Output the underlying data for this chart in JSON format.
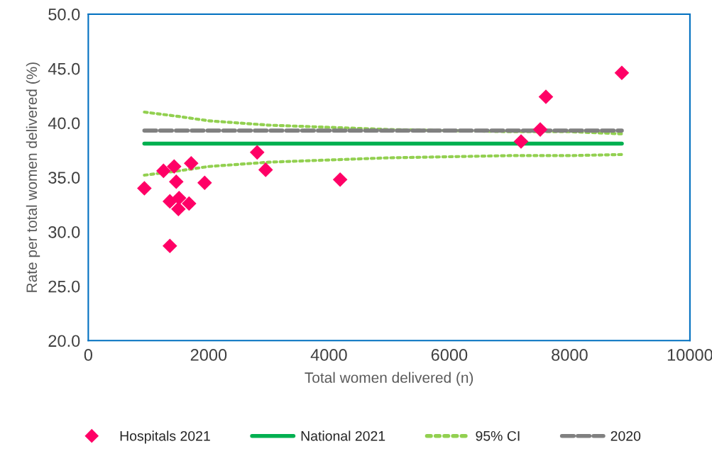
{
  "chart_data": {
    "type": "scatter",
    "xlabel": "Total women delivered (n)",
    "ylabel": "Rate per total women delivered (%)",
    "xlim": [
      0,
      10000
    ],
    "ylim": [
      20,
      50
    ],
    "xticks": [
      0,
      2000,
      4000,
      6000,
      8000,
      10000
    ],
    "yticks": [
      {
        "value": 20,
        "label": "20.0"
      },
      {
        "value": 25,
        "label": "25.0"
      },
      {
        "value": 30,
        "label": "30.0"
      },
      {
        "value": 35,
        "label": "35.0"
      },
      {
        "value": 40,
        "label": "40.0"
      },
      {
        "value": 45,
        "label": "45.0"
      },
      {
        "value": 50,
        "label": "50.0"
      }
    ],
    "grid": false,
    "legend": "bottom",
    "series": [
      {
        "name": "Hospitals 2021",
        "marker": "diamond",
        "color": "#ff0066",
        "x": [
          932,
          1250,
          1356,
          1356,
          1427,
          1462,
          1498,
          1509,
          1675,
          1710,
          1934,
          2807,
          2948,
          4186,
          7193,
          7512,
          7606,
          8868
        ],
        "values": [
          34.0,
          35.6,
          28.7,
          32.8,
          36.0,
          34.6,
          32.1,
          33.1,
          32.6,
          36.3,
          34.5,
          37.3,
          35.7,
          34.8,
          38.3,
          39.4,
          42.4,
          44.6
        ]
      },
      {
        "name": "National 2021",
        "type": "line",
        "marker": "none",
        "line_style": "solid",
        "color": "#00b050",
        "x": [
          932,
          8868
        ],
        "values": [
          38.1,
          38.1
        ]
      },
      {
        "name": "95% CI",
        "type": "line",
        "marker": "none",
        "line_style": "dotted",
        "color": "#92d050",
        "x": [
          932,
          1500,
          2000,
          3000,
          4000,
          5000,
          6000,
          7000,
          8000,
          8868
        ],
        "values": [
          41.0,
          40.6,
          40.2,
          39.8,
          39.6,
          39.4,
          39.3,
          39.2,
          39.2,
          39.0
        ]
      },
      {
        "type": "line",
        "marker": "none",
        "line_style": "dotted",
        "color": "#92d050",
        "x": [
          932,
          1500,
          2000,
          3000,
          4000,
          5000,
          6000,
          7000,
          8000,
          8868
        ],
        "values": [
          35.2,
          35.6,
          36.0,
          36.4,
          36.6,
          36.8,
          36.9,
          37.0,
          37.0,
          37.1
        ]
      },
      {
        "name": "2020",
        "type": "line",
        "marker": "none",
        "line_style": "dashed",
        "color": "#808080",
        "x": [
          932,
          8868
        ],
        "values": [
          39.3,
          39.3
        ]
      }
    ]
  }
}
